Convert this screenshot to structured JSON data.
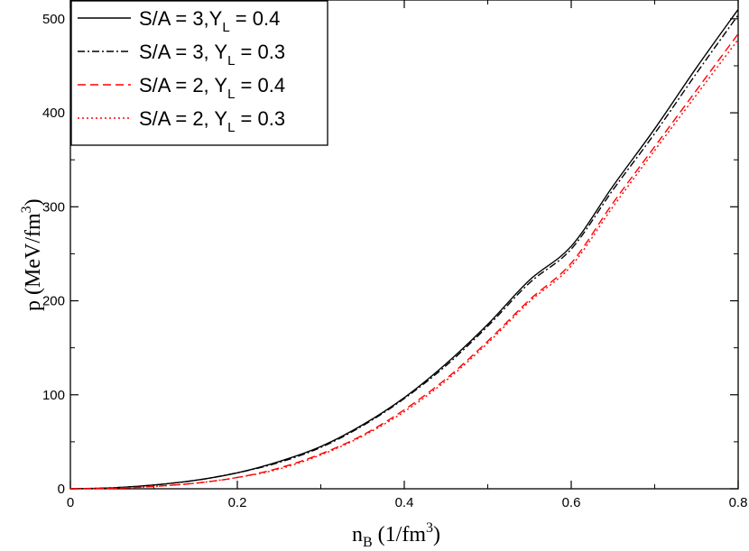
{
  "chart_data": {
    "type": "line",
    "xlabel": {
      "main": "n",
      "sub": "B",
      "mid": " (1/fm",
      "sup": "3",
      "end": ")"
    },
    "ylabel": {
      "main": "p (MeV/fm",
      "sup": "3",
      "end": ")"
    },
    "xlim": [
      0,
      0.8
    ],
    "ylim": [
      0,
      520
    ],
    "xticks": [
      0,
      0.2,
      0.4,
      0.6,
      0.8
    ],
    "xtick_labels": [
      "0",
      "0.2",
      "0.4",
      "0.6",
      "0.8"
    ],
    "yticks": [
      0,
      100,
      200,
      300,
      400,
      500
    ],
    "ytick_labels": [
      "0",
      "100",
      "200",
      "300",
      "400",
      "500"
    ],
    "grid": false,
    "legend_position": "top-left",
    "x": [
      0,
      0.05,
      0.1,
      0.15,
      0.2,
      0.25,
      0.3,
      0.35,
      0.4,
      0.45,
      0.5,
      0.55,
      0.6,
      0.65,
      0.7,
      0.75,
      0.8
    ],
    "series": [
      {
        "name": "S/A = 3,Y_L = 0.4",
        "label_main": "S/A = 3,Y",
        "label_sub": "L",
        "label_end": " = 0.4",
        "color": "#000000",
        "dash": "",
        "values": [
          0,
          1,
          4,
          9,
          17,
          29,
          45,
          68,
          97,
          133,
          175,
          222,
          258,
          322,
          383,
          448,
          510
        ]
      },
      {
        "name": "S/A = 3, Y_L = 0.3",
        "label_main": "S/A = 3, Y",
        "label_sub": "L",
        "label_end": " = 0.3",
        "color": "#000000",
        "dash": "8,3,2,3",
        "values": [
          0,
          1,
          4,
          9,
          17,
          28,
          44,
          67,
          96,
          131,
          173,
          219,
          255,
          318,
          378,
          442,
          504
        ]
      },
      {
        "name": "S/A = 2, Y_L = 0.4",
        "label_main": "S/A = 2, Y",
        "label_sub": "L",
        "label_end": " = 0.4",
        "color": "#ff0000",
        "dash": "9,5",
        "values": [
          0,
          0.5,
          2.5,
          6,
          12,
          22,
          37,
          57,
          84,
          117,
          157,
          201,
          240,
          304,
          364,
          424,
          484
        ]
      },
      {
        "name": "S/A = 2, Y_L = 0.3",
        "label_main": "S/A = 2, Y",
        "label_sub": "L",
        "label_end": " = 0.3",
        "color": "#ff0000",
        "dash": "2,3",
        "values": [
          0,
          0.5,
          2.5,
          6,
          12,
          21,
          36,
          56,
          82,
          115,
          155,
          199,
          237,
          300,
          360,
          419,
          478
        ]
      }
    ]
  }
}
